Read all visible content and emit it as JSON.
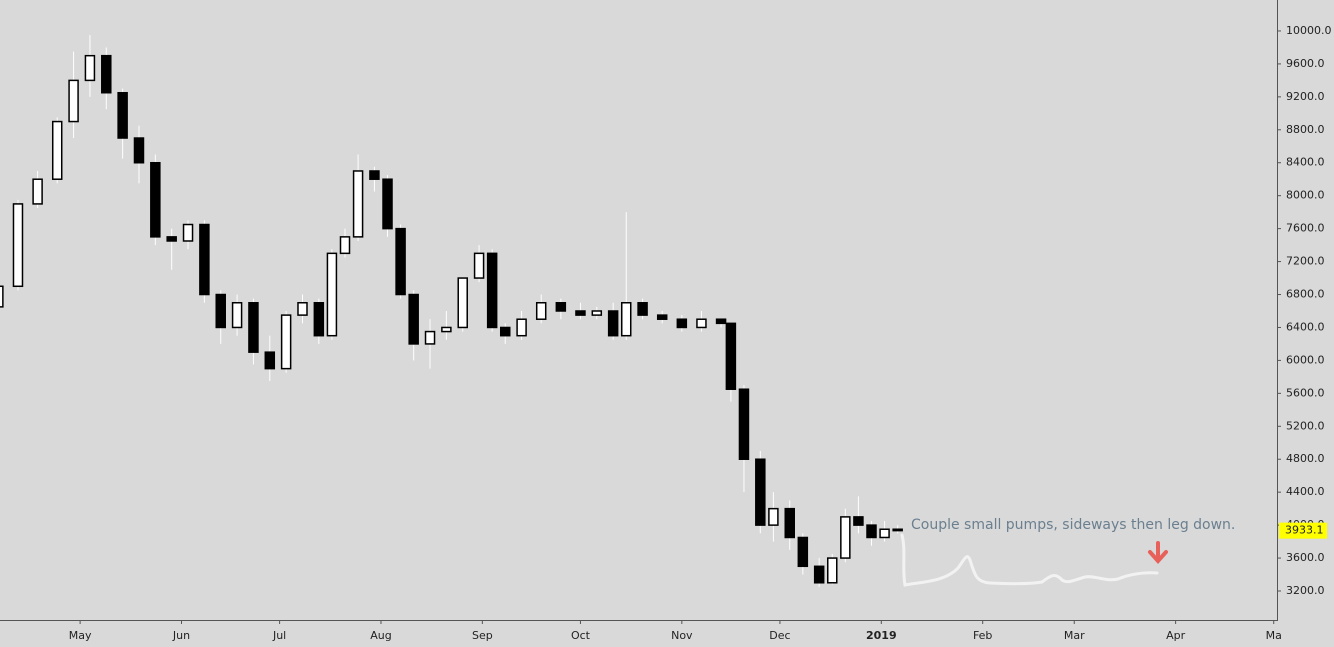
{
  "chart_data": {
    "type": "candlestick",
    "annotation": "Couple small pumps, sideways then leg down.",
    "x": [
      96,
      102,
      108,
      114,
      119,
      124,
      129,
      134,
      139,
      144,
      149,
      154,
      159,
      164,
      169,
      174,
      179,
      184,
      189,
      194,
      198,
      202,
      206,
      211,
      215,
      219,
      223,
      228,
      233,
      238,
      243,
      247,
      251,
      256,
      262,
      268,
      274,
      279,
      284,
      288,
      293,
      299,
      305,
      311,
      317,
      320,
      324,
      329,
      333,
      338,
      342,
      347,
      351,
      355,
      359,
      363,
      367,
      371
    ],
    "open": [
      6650,
      6900,
      7900,
      8200,
      8900,
      9400,
      9700,
      9250,
      8700,
      8400,
      7500,
      7450,
      7650,
      6800,
      6400,
      6700,
      6100,
      5900,
      6550,
      6700,
      6300,
      7300,
      7500,
      8300,
      8200,
      7600,
      6800,
      6200,
      6350,
      6400,
      7000,
      7300,
      6400,
      6300,
      6500,
      6700,
      6600,
      6550,
      6600,
      6300,
      6700,
      6550,
      6500,
      6400,
      6500,
      6450,
      5650,
      4800,
      4000,
      4200,
      3850,
      3500,
      3300,
      3600,
      4100,
      4000,
      3850,
      3950
    ],
    "high": [
      6950,
      7950,
      8300,
      8950,
      9750,
      9950,
      9800,
      9300,
      8850,
      8500,
      7600,
      7700,
      7700,
      6850,
      6800,
      6750,
      6300,
      6600,
      6800,
      6750,
      7350,
      7600,
      8500,
      8350,
      8250,
      7650,
      6850,
      6500,
      6600,
      7000,
      7400,
      7350,
      6450,
      6600,
      6800,
      6750,
      6700,
      6650,
      6700,
      7800,
      6750,
      6600,
      6550,
      6600,
      6500,
      6450,
      5700,
      4900,
      4400,
      4300,
      3900,
      3600,
      3650,
      4200,
      4350,
      4050,
      4050,
      4000
    ],
    "low": [
      6600,
      6850,
      7850,
      8150,
      8700,
      9200,
      9050,
      8450,
      8150,
      7400,
      7100,
      7350,
      6700,
      6200,
      6300,
      5950,
      5750,
      5850,
      6450,
      6200,
      6250,
      7250,
      7450,
      8050,
      7500,
      6750,
      6000,
      5900,
      6250,
      6350,
      6950,
      6350,
      6200,
      6250,
      6450,
      6500,
      6500,
      6500,
      6250,
      6250,
      6500,
      6450,
      6350,
      6350,
      6400,
      5500,
      4400,
      3900,
      3800,
      3700,
      3400,
      3250,
      3280,
      3550,
      3900,
      3750,
      3800,
      3900
    ],
    "close": [
      6900,
      7900,
      8200,
      8900,
      9400,
      9700,
      9250,
      8700,
      8400,
      7500,
      7450,
      7650,
      6800,
      6400,
      6700,
      6100,
      5900,
      6550,
      6700,
      6300,
      7300,
      7500,
      8300,
      8200,
      7600,
      6800,
      6200,
      6350,
      6400,
      7000,
      7300,
      6400,
      6300,
      6500,
      6700,
      6600,
      6550,
      6600,
      6300,
      6700,
      6550,
      6500,
      6400,
      6500,
      6450,
      5650,
      4800,
      4000,
      4200,
      3850,
      3500,
      3300,
      3600,
      4100,
      4000,
      3850,
      3950,
      3933.1
    ],
    "xlim": [
      96.5,
      487
    ],
    "xticks": [
      {
        "value": 121,
        "label": "May"
      },
      {
        "value": 152,
        "label": "Jun"
      },
      {
        "value": 182,
        "label": "Jul"
      },
      {
        "value": 213,
        "label": "Aug"
      },
      {
        "value": 244,
        "label": "Sep"
      },
      {
        "value": 274,
        "label": "Oct"
      },
      {
        "value": 305,
        "label": "Nov"
      },
      {
        "value": 335,
        "label": "Dec"
      },
      {
        "value": 366,
        "label": "2019"
      },
      {
        "value": 397,
        "label": "Feb"
      },
      {
        "value": 425,
        "label": "Mar"
      },
      {
        "value": 456,
        "label": "Apr"
      },
      {
        "value": 486,
        "label": "Ma"
      }
    ],
    "ylim": [
      2848,
      10376
    ],
    "yticks": [
      {
        "value": 3200,
        "label": "3200.0"
      },
      {
        "value": 3600,
        "label": "3600.0"
      },
      {
        "value": 4000,
        "label": "4000.0"
      },
      {
        "value": 4400,
        "label": "4400.0"
      },
      {
        "value": 4800,
        "label": "4800.0"
      },
      {
        "value": 5200,
        "label": "5200.0"
      },
      {
        "value": 5600,
        "label": "5600.0"
      },
      {
        "value": 6000,
        "label": "6000.0"
      },
      {
        "value": 6400,
        "label": "6400.0"
      },
      {
        "value": 6800,
        "label": "6800.0"
      },
      {
        "value": 7200,
        "label": "7200.0"
      },
      {
        "value": 7600,
        "label": "7600.0"
      },
      {
        "value": 8000,
        "label": "8000.0"
      },
      {
        "value": 8400,
        "label": "8400.0"
      },
      {
        "value": 8800,
        "label": "8800.0"
      },
      {
        "value": 9200,
        "label": "9200.0"
      },
      {
        "value": 9600,
        "label": "9600.0"
      },
      {
        "value": 10000,
        "label": "10000.0"
      }
    ],
    "up_color": "#ffffff",
    "down_color": "#000000",
    "wick_color": "#ffffff",
    "last_color": "#ffff00"
  }
}
